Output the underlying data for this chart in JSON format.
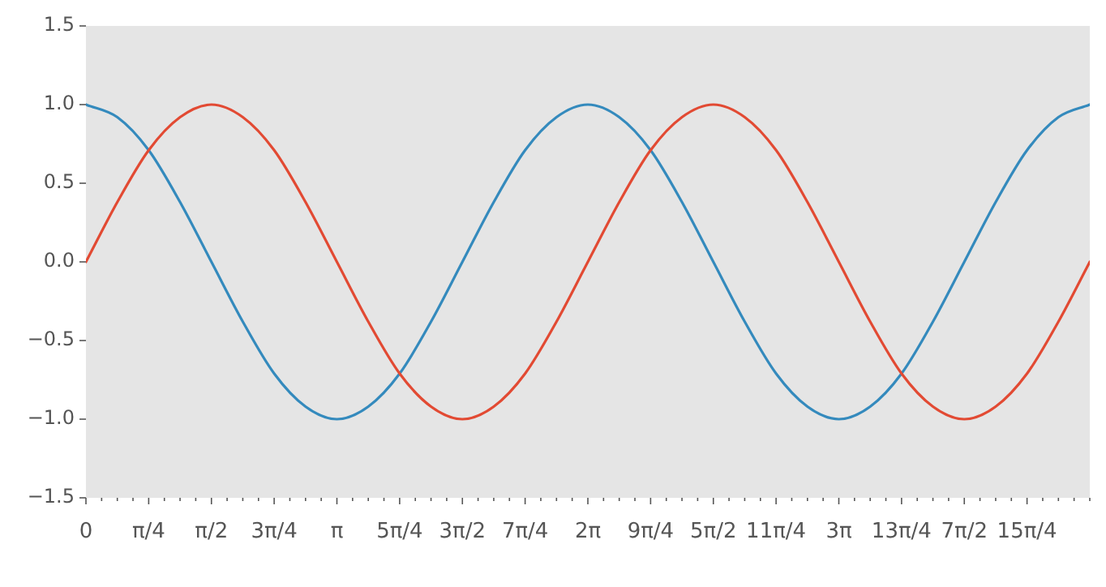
{
  "chart_data": {
    "type": "line",
    "x": [
      0,
      0.3927,
      0.7854,
      1.1781,
      1.5708,
      1.9635,
      2.3562,
      2.7489,
      3.1416,
      3.5343,
      3.927,
      4.3197,
      4.7124,
      5.1051,
      5.4978,
      5.8905,
      6.2832,
      6.6759,
      7.0686,
      7.4613,
      7.854,
      8.2467,
      8.6394,
      9.0321,
      9.4248,
      9.8175,
      10.2102,
      10.6029,
      10.9956,
      11.3883,
      11.781,
      12.1737,
      12.5664
    ],
    "series": [
      {
        "color": "#e24a33",
        "values": [
          0,
          0.38,
          0.71,
          0.92,
          1,
          0.92,
          0.71,
          0.38,
          0,
          -0.38,
          -0.71,
          -0.92,
          -1,
          -0.92,
          -0.71,
          -0.38,
          0,
          0.38,
          0.71,
          0.92,
          1,
          0.92,
          0.71,
          0.38,
          0,
          -0.38,
          -0.71,
          -0.92,
          -1,
          -0.92,
          -0.71,
          -0.38,
          0
        ]
      },
      {
        "color": "#348abd",
        "values": [
          1,
          0.92,
          0.71,
          0.38,
          0,
          -0.38,
          -0.71,
          -0.92,
          -1,
          -0.92,
          -0.71,
          -0.38,
          0,
          0.38,
          0.71,
          0.92,
          1,
          0.92,
          0.71,
          0.38,
          0,
          -0.38,
          -0.71,
          -0.92,
          -1,
          -0.92,
          -0.71,
          -0.38,
          0,
          0.38,
          0.71,
          0.92,
          1
        ]
      }
    ],
    "xlim": [
      0,
      12.5664
    ],
    "xticks": [
      {
        "value": 0,
        "label": "0"
      },
      {
        "value": 0.1963,
        "label": null
      },
      {
        "value": 0.3927,
        "label": null
      },
      {
        "value": 0.589,
        "label": null
      },
      {
        "value": 0.7854,
        "label": "π/4"
      },
      {
        "value": 0.9817,
        "label": null
      },
      {
        "value": 1.1781,
        "label": null
      },
      {
        "value": 1.3744,
        "label": null
      },
      {
        "value": 1.5708,
        "label": "π/2"
      },
      {
        "value": 1.7671,
        "label": null
      },
      {
        "value": 1.9635,
        "label": null
      },
      {
        "value": 2.1598,
        "label": null
      },
      {
        "value": 2.3562,
        "label": "3π/4"
      },
      {
        "value": 2.5525,
        "label": null
      },
      {
        "value": 2.7489,
        "label": null
      },
      {
        "value": 2.9452,
        "label": null
      },
      {
        "value": 3.1416,
        "label": "π"
      },
      {
        "value": 3.3379,
        "label": null
      },
      {
        "value": 3.5343,
        "label": null
      },
      {
        "value": 3.7306,
        "label": null
      },
      {
        "value": 3.927,
        "label": "5π/4"
      },
      {
        "value": 4.1233,
        "label": null
      },
      {
        "value": 4.3197,
        "label": null
      },
      {
        "value": 4.516,
        "label": null
      },
      {
        "value": 4.7124,
        "label": "3π/2"
      },
      {
        "value": 4.9087,
        "label": null
      },
      {
        "value": 5.1051,
        "label": null
      },
      {
        "value": 5.3014,
        "label": null
      },
      {
        "value": 5.4978,
        "label": "7π/4"
      },
      {
        "value": 5.6941,
        "label": null
      },
      {
        "value": 5.8905,
        "label": null
      },
      {
        "value": 6.0868,
        "label": null
      },
      {
        "value": 6.2832,
        "label": "2π"
      },
      {
        "value": 6.4795,
        "label": null
      },
      {
        "value": 6.6759,
        "label": null
      },
      {
        "value": 6.8722,
        "label": null
      },
      {
        "value": 7.0686,
        "label": "9π/4"
      },
      {
        "value": 7.2649,
        "label": null
      },
      {
        "value": 7.4613,
        "label": null
      },
      {
        "value": 7.6576,
        "label": null
      },
      {
        "value": 7.854,
        "label": "5π/2"
      },
      {
        "value": 8.0503,
        "label": null
      },
      {
        "value": 8.2467,
        "label": null
      },
      {
        "value": 8.443,
        "label": null
      },
      {
        "value": 8.6394,
        "label": "11π/4"
      },
      {
        "value": 8.8357,
        "label": null
      },
      {
        "value": 9.0321,
        "label": null
      },
      {
        "value": 9.2284,
        "label": null
      },
      {
        "value": 9.4248,
        "label": "3π"
      },
      {
        "value": 9.6211,
        "label": null
      },
      {
        "value": 9.8175,
        "label": null
      },
      {
        "value": 10.0138,
        "label": null
      },
      {
        "value": 10.2102,
        "label": "13π/4"
      },
      {
        "value": 10.4065,
        "label": null
      },
      {
        "value": 10.6029,
        "label": null
      },
      {
        "value": 10.7992,
        "label": null
      },
      {
        "value": 10.9956,
        "label": "7π/2"
      },
      {
        "value": 11.1919,
        "label": null
      },
      {
        "value": 11.3883,
        "label": null
      },
      {
        "value": 11.5846,
        "label": null
      },
      {
        "value": 11.781,
        "label": "15π/4"
      },
      {
        "value": 11.9773,
        "label": null
      },
      {
        "value": 12.1737,
        "label": null
      },
      {
        "value": 12.37,
        "label": null
      },
      {
        "value": 12.5664,
        "label": null
      }
    ],
    "ylim": [
      -1.5,
      1.5
    ],
    "yticks": [
      {
        "value": -1.5,
        "label": "−1.5"
      },
      {
        "value": -1.0,
        "label": "−1.0"
      },
      {
        "value": -0.5,
        "label": "−0.5"
      },
      {
        "value": 0,
        "label": "0.0"
      },
      {
        "value": 0.5,
        "label": "0.5"
      },
      {
        "value": 1.0,
        "label": "1.0"
      },
      {
        "value": 1.5,
        "label": "1.5"
      }
    ],
    "grid": false,
    "legend": false,
    "marker": "none",
    "line_style": "solid"
  }
}
